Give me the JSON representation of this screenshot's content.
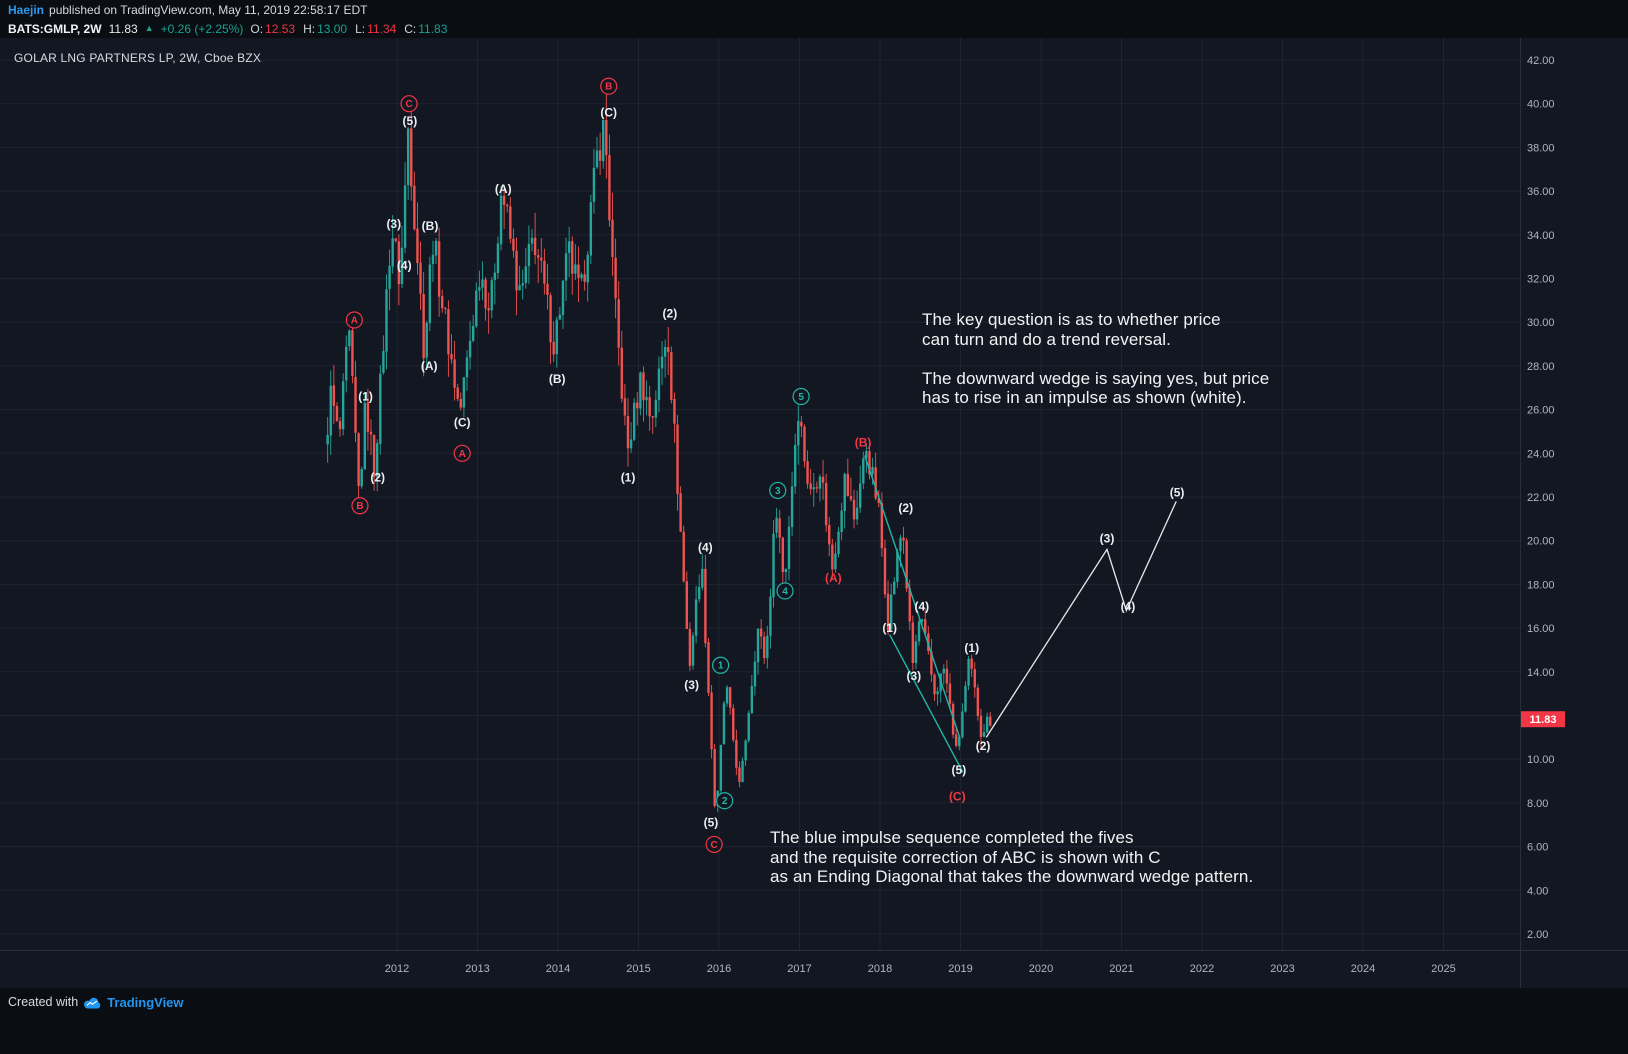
{
  "publish_bar": {
    "author": "Haejin",
    "rest": "published on TradingView.com, May 11, 2019 22:58:17 EDT"
  },
  "ticker_bar": {
    "symbol": "BATS:GMLP, 2W",
    "last": "11.83",
    "direction_icon": "▲",
    "change": "+0.26 (+2.25%)",
    "ohlc": [
      {
        "label": "O:",
        "value": "12.53",
        "dir": "down"
      },
      {
        "label": "H:",
        "value": "13.00",
        "dir": "up"
      },
      {
        "label": "L:",
        "value": "11.34",
        "dir": "down"
      },
      {
        "label": "C:",
        "value": "11.83",
        "dir": "up"
      }
    ]
  },
  "chart_title": "GOLAR LNG PARTNERS LP, 2W, Cboe BZX",
  "annotations": {
    "top_right": "The key question is as to whether price\ncan turn and do a trend reversal.\n\nThe downward wedge is saying yes, but price\nhas to rise in an impulse as shown (white).",
    "bottom": "The blue impulse sequence completed the fives\nand the requisite correction of ABC is shown with C\nas an Ending Diagonal that takes the downward wedge pattern."
  },
  "price_tag": "11.83",
  "footer": {
    "created_with": "Created with",
    "brand": "TradingView"
  },
  "chart_data": {
    "type": "candlestick",
    "title": "GOLAR LNG PARTNERS LP, 2W, Cboe BZX",
    "symbol": "BATS:GMLP",
    "timeframe": "2W",
    "last_price": 11.83,
    "start_year": 2011.12,
    "end_year": 2019.36,
    "colors": {
      "up": "#26a69a",
      "down": "#ef5350",
      "down_label": "#f23645",
      "teal": "#22b5a8",
      "white": "#e9e9e9",
      "grid": "#1e2430",
      "axis_text": "#b2b5be",
      "axis_line": "#2a2e39",
      "bg": "#131722"
    },
    "x_axis": {
      "ticks": [
        2012,
        2013,
        2014,
        2015,
        2016,
        2017,
        2018,
        2019,
        2020,
        2021,
        2022,
        2023,
        2024,
        2025
      ],
      "labels": [
        "2012",
        "2013",
        "2014",
        "2015",
        "2016",
        "2017",
        "2018",
        "2019",
        "2020",
        "2021",
        "2022",
        "2023",
        "2024",
        "2025"
      ]
    },
    "y_axis": {
      "ticks": [
        42,
        40,
        38,
        36,
        34,
        32,
        30,
        28,
        26,
        24,
        22,
        20,
        18,
        16,
        14,
        12,
        10,
        8,
        6,
        4,
        2
      ],
      "labels": [
        "42.00",
        "40.00",
        "38.00",
        "36.00",
        "34.00",
        "32.00",
        "30.00",
        "28.00",
        "26.00",
        "24.00",
        "22.00",
        "20.00",
        "18.00",
        "16.00",
        "14.00",
        "12.00",
        "10.00",
        "8.00",
        "6.00",
        "4.00",
        "2.00"
      ]
    },
    "pivots": [
      [
        2011.12,
        24.0
      ],
      [
        2011.2,
        26.8
      ],
      [
        2011.3,
        24.5
      ],
      [
        2011.42,
        29.6
      ],
      [
        2011.55,
        21.9
      ],
      [
        2011.63,
        26.3
      ],
      [
        2011.74,
        23.2
      ],
      [
        2011.95,
        34.4
      ],
      [
        2012.06,
        31.8
      ],
      [
        2012.16,
        39.0
      ],
      [
        2012.36,
        28.6
      ],
      [
        2012.46,
        34.0
      ],
      [
        2012.62,
        30.0
      ],
      [
        2012.8,
        25.8
      ],
      [
        2013.05,
        32.5
      ],
      [
        2013.18,
        30.5
      ],
      [
        2013.32,
        36.2
      ],
      [
        2013.55,
        31.0
      ],
      [
        2013.72,
        34.0
      ],
      [
        2013.97,
        29.0
      ],
      [
        2014.15,
        33.2
      ],
      [
        2014.3,
        31.0
      ],
      [
        2014.52,
        38.0
      ],
      [
        2014.6,
        39.0
      ],
      [
        2014.72,
        31.0
      ],
      [
        2014.88,
        24.0
      ],
      [
        2015.05,
        27.5
      ],
      [
        2015.18,
        25.5
      ],
      [
        2015.38,
        29.8
      ],
      [
        2015.65,
        14.2
      ],
      [
        2015.8,
        19.2
      ],
      [
        2015.98,
        7.0
      ],
      [
        2016.1,
        13.6
      ],
      [
        2016.28,
        8.6
      ],
      [
        2016.5,
        16.0
      ],
      [
        2016.6,
        14.5
      ],
      [
        2016.73,
        21.8
      ],
      [
        2016.83,
        17.9
      ],
      [
        2017.0,
        26.2
      ],
      [
        2017.15,
        22.0
      ],
      [
        2017.28,
        23.5
      ],
      [
        2017.42,
        18.6
      ],
      [
        2017.58,
        22.8
      ],
      [
        2017.7,
        21.0
      ],
      [
        2017.85,
        24.3
      ],
      [
        2018.0,
        21.5
      ],
      [
        2018.12,
        16.4
      ],
      [
        2018.3,
        20.8
      ],
      [
        2018.42,
        14.2
      ],
      [
        2018.52,
        16.6
      ],
      [
        2018.7,
        13.0
      ],
      [
        2018.82,
        14.2
      ],
      [
        2018.97,
        10.2
      ],
      [
        2019.13,
        14.5
      ],
      [
        2019.28,
        11.2
      ],
      [
        2019.36,
        11.83
      ]
    ],
    "wave_labels": [
      [
        2012.16,
        39.2,
        "(5)",
        "w"
      ],
      [
        2011.96,
        34.5,
        "(3)",
        "w"
      ],
      [
        2012.41,
        34.4,
        "(B)",
        "w"
      ],
      [
        2012.09,
        32.6,
        "(4)",
        "w"
      ],
      [
        2013.32,
        36.1,
        "(A)",
        "w"
      ],
      [
        2012.4,
        28.0,
        "(A)",
        "w"
      ],
      [
        2011.61,
        26.6,
        "(1)",
        "w"
      ],
      [
        2012.81,
        25.4,
        "(C)",
        "w"
      ],
      [
        2011.76,
        22.9,
        "(2)",
        "w"
      ],
      [
        2013.99,
        27.4,
        "(B)",
        "w"
      ],
      [
        2014.63,
        39.6,
        "(C)",
        "w"
      ],
      [
        2015.39,
        30.4,
        "(2)",
        "w"
      ],
      [
        2014.87,
        22.9,
        "(1)",
        "w"
      ],
      [
        2015.83,
        19.7,
        "(4)",
        "w"
      ],
      [
        2015.66,
        13.4,
        "(3)",
        "w"
      ],
      [
        2015.9,
        7.1,
        "(5)",
        "w"
      ],
      [
        2018.32,
        21.5,
        "(2)",
        "w"
      ],
      [
        2018.52,
        17.0,
        "(4)",
        "w"
      ],
      [
        2018.12,
        16.0,
        "(1)",
        "w"
      ],
      [
        2018.42,
        13.8,
        "(3)",
        "w"
      ],
      [
        2019.14,
        15.1,
        "(1)",
        "w"
      ],
      [
        2019.28,
        10.6,
        "(2)",
        "w"
      ],
      [
        2018.98,
        9.5,
        "(5)",
        "w"
      ],
      [
        2020.82,
        20.1,
        "(3)",
        "w"
      ],
      [
        2021.08,
        17.0,
        "(4)",
        "w"
      ],
      [
        2021.69,
        22.2,
        "(5)",
        "w"
      ],
      [
        2017.42,
        18.3,
        "(A)",
        "r"
      ],
      [
        2017.79,
        24.5,
        "(B)",
        "r"
      ],
      [
        2018.96,
        8.3,
        "(C)",
        "r"
      ],
      [
        2012.15,
        40.0,
        "C",
        "rc"
      ],
      [
        2014.63,
        40.8,
        "B",
        "rc"
      ],
      [
        2011.47,
        30.1,
        "A",
        "rc"
      ],
      [
        2011.54,
        21.6,
        "B",
        "rc"
      ],
      [
        2012.81,
        24.0,
        "A",
        "rc"
      ],
      [
        2015.94,
        6.1,
        "C",
        "rc"
      ],
      [
        2016.02,
        14.3,
        "1",
        "cc"
      ],
      [
        2016.07,
        8.1,
        "2",
        "cc"
      ],
      [
        2016.73,
        22.3,
        "3",
        "cc"
      ],
      [
        2016.82,
        17.7,
        "4",
        "cc"
      ],
      [
        2017.02,
        26.6,
        "5",
        "cc"
      ]
    ],
    "lines": [
      {
        "name": "wedge-upper-line",
        "color": "#22b5a8",
        "width": 1.4,
        "points": [
          [
            2017.81,
            23.9
          ],
          [
            2018.99,
            11.0
          ]
        ]
      },
      {
        "name": "wedge-lower-line",
        "color": "#22b5a8",
        "width": 1.4,
        "points": [
          [
            2018.12,
            15.7
          ],
          [
            2019.03,
            9.4
          ]
        ]
      },
      {
        "name": "white-impulse-projection",
        "color": "#e9e9e9",
        "width": 1.3,
        "points": [
          [
            2019.32,
            11.0
          ],
          [
            2020.82,
            19.6
          ],
          [
            2021.06,
            16.8
          ],
          [
            2021.68,
            21.8
          ]
        ]
      }
    ]
  }
}
